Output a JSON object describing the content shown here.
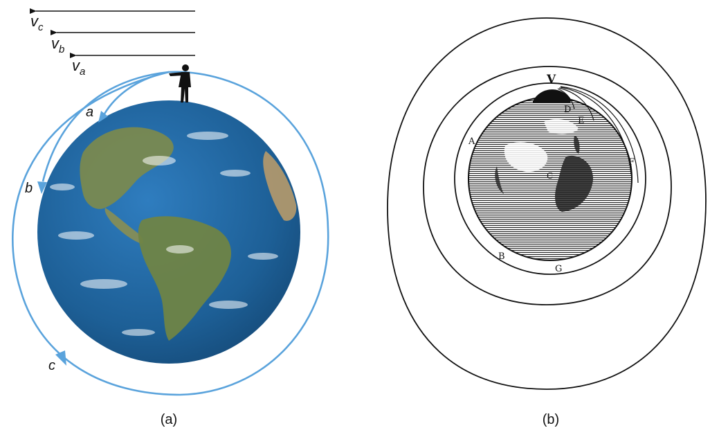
{
  "panel_a": {
    "caption": "(a)",
    "velocity_labels": [
      {
        "symbol": "v",
        "sub": "c"
      },
      {
        "symbol": "v",
        "sub": "b"
      },
      {
        "symbol": "v",
        "sub": "a"
      }
    ],
    "trajectory_labels": [
      "a",
      "b",
      "c"
    ],
    "colors": {
      "orbit": "#5aa3dc",
      "ocean": "#1d5f96",
      "land": "#7c8a4d",
      "arrow": "#111111"
    }
  },
  "panel_b": {
    "caption": "(b)",
    "point_labels": [
      "V",
      "D",
      "E",
      "A",
      "F",
      "C",
      "B",
      "G"
    ],
    "colors": {
      "ink": "#111111"
    }
  }
}
